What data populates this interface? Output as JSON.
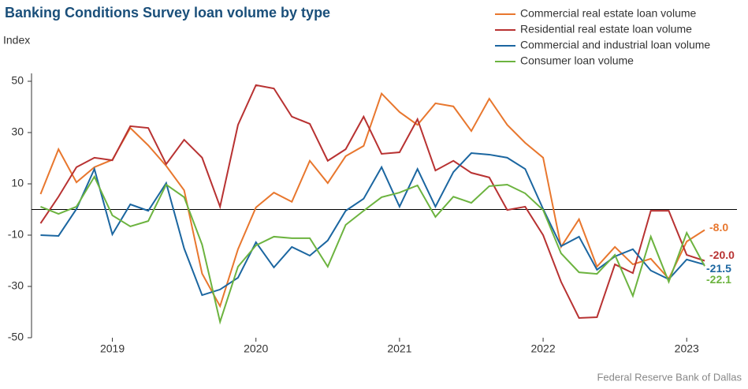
{
  "chart_data": {
    "type": "line",
    "title": "Banking Conditions Survey loan volume by type",
    "y_label": "Index",
    "source": "Federal Reserve Bank of Dallas",
    "x": [
      2018.5,
      2018.625,
      2018.75,
      2018.875,
      2019,
      2019.125,
      2019.25,
      2019.375,
      2019.5,
      2019.625,
      2019.75,
      2019.875,
      2020,
      2020.125,
      2020.25,
      2020.375,
      2020.5,
      2020.625,
      2020.75,
      2020.875,
      2021,
      2021.125,
      2021.25,
      2021.375,
      2021.5,
      2021.625,
      2021.75,
      2021.875,
      2022,
      2022.125,
      2022.25,
      2022.375,
      2022.5,
      2022.625,
      2022.75,
      2022.875,
      2023,
      2023.125
    ],
    "xlim": [
      2018.47,
      2023.35
    ],
    "xticks": [
      2019,
      2020,
      2021,
      2022,
      2023
    ],
    "ylim": [
      -50,
      50
    ],
    "yticks": [
      -50,
      -30,
      -10,
      10,
      30,
      50
    ],
    "series": [
      {
        "name": "Commercial real estate loan volume",
        "color": "#e8772e",
        "values": [
          6,
          23.5,
          10.6,
          16.5,
          19.4,
          31.8,
          25,
          17,
          7.5,
          -25,
          -37.7,
          -15.5,
          0.8,
          6.6,
          3,
          19,
          10.3,
          20.8,
          24.8,
          45.2,
          38,
          33,
          41.4,
          40.2,
          30.6,
          43.2,
          33,
          26,
          20.2,
          -14.6,
          -3.8,
          -22.3,
          -14.6,
          -21.4,
          -19.2,
          -27,
          -12.5,
          -8.0
        ],
        "value_labels": [
          null,
          null,
          null,
          null,
          null,
          null,
          null,
          null,
          null,
          null,
          null,
          null,
          null,
          null,
          null,
          null,
          null,
          null,
          null,
          null,
          null,
          null,
          null,
          null,
          null,
          null,
          null,
          null,
          null,
          null,
          null,
          null,
          null,
          null,
          null,
          null,
          null,
          "-8.0"
        ]
      },
      {
        "name": "Residential real estate loan volume",
        "color": "#b83232",
        "values": [
          -5.4,
          5,
          16.5,
          20.2,
          19.2,
          32.5,
          31.8,
          17.7,
          27.2,
          20.2,
          1.1,
          33,
          48.5,
          47.2,
          36.2,
          33.4,
          19,
          23.5,
          36.2,
          21.7,
          22.3,
          35.2,
          15.2,
          19,
          14.3,
          12.5,
          -0.2,
          1.1,
          -10,
          -28.2,
          -42.3,
          -42,
          -21.4,
          -24.8,
          -0.5,
          -0.5,
          -17.7,
          -20.0
        ],
        "value_labels": [
          null,
          null,
          null,
          null,
          null,
          null,
          null,
          null,
          null,
          null,
          null,
          null,
          null,
          null,
          null,
          null,
          null,
          null,
          null,
          null,
          null,
          null,
          null,
          null,
          null,
          null,
          null,
          null,
          null,
          null,
          null,
          null,
          null,
          null,
          null,
          null,
          null,
          "-20.0"
        ]
      },
      {
        "name": "Commercial and industrial loan volume",
        "color": "#1b66a0",
        "values": [
          -10,
          -10.3,
          0.2,
          15.8,
          -9.7,
          2,
          -0.5,
          10.3,
          -15.2,
          -33.4,
          -31.2,
          -26.6,
          -12.8,
          -22.6,
          -14.6,
          -18,
          -12.1,
          -0.5,
          4.2,
          16.5,
          1.1,
          15.8,
          1.1,
          14.6,
          22,
          21.4,
          20.2,
          15.8,
          0.2,
          -14.3,
          -10.6,
          -23.5,
          -18.3,
          -15.5,
          -23.8,
          -27.2,
          -19.5,
          -21.5
        ]
      },
      {
        "name": "Consumer loan volume",
        "color": "#6cb33f",
        "values": [
          1.1,
          -1.7,
          1.1,
          12.8,
          -2.3,
          -6.6,
          -4.5,
          9.7,
          4.8,
          -13.7,
          -43.8,
          -22.3,
          -14,
          -10.6,
          -11.2,
          -11.2,
          -22.3,
          -6,
          -0.5,
          4.8,
          6.6,
          9.4,
          -2.9,
          5,
          2.6,
          9.1,
          9.7,
          6.3,
          -0.2,
          -17.1,
          -24.5,
          -25.1,
          -17.7,
          -33.7,
          -10.6,
          -28.2,
          -9.1,
          -22.1
        ]
      }
    ]
  }
}
